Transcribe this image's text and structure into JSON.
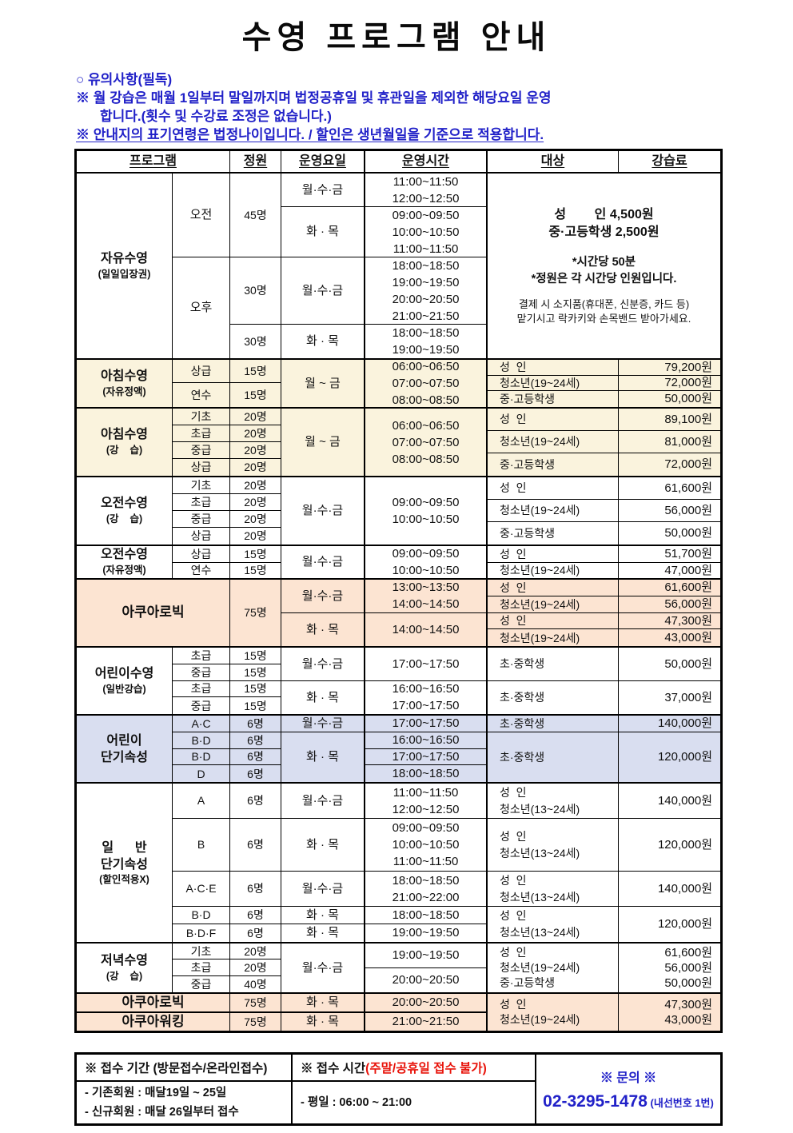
{
  "title": "수영 프로그램 안내",
  "notices": {
    "heading": "○ 유의사항(필독)",
    "line1": "※ 월 강습은 매월 1일부터 말일까지며 법정공휴일 및 휴관일을 제외한 해당요일 운영",
    "line2": "합니다.(횟수 및 수강료 조정은 없습니다.)",
    "line3": "※ 안내지의 표기연령은 법정나이입니다. / 할인은 생년월일을 기준으로 적용합니다."
  },
  "header": {
    "program": "프로그램",
    "capacity": "정원",
    "days": "운영요일",
    "time": "운영시간",
    "target": "대상",
    "fee": "강습료"
  },
  "s1": {
    "name": "자유수영",
    "sub": "(일일입장권)",
    "am": "오전",
    "am_cap": "45명",
    "am_g1_days": "월·수·금",
    "am_g1_time": "11:00~11:50\n12:00~12:50",
    "am_g2_days": "화 · 목",
    "am_g2_time": "09:00~09:50\n10:00~10:50\n11:00~11:50",
    "pm": "오후",
    "pm_cap1": "30명",
    "pm_g1_days": "월·수·금",
    "pm_g1_time": "18:00~18:50\n19:00~19:50\n20:00~20:50\n21:00~21:50",
    "pm_cap2": "30명",
    "pm_g2_days": "화 · 목",
    "pm_g2_time": "18:00~18:50\n19:00~19:50",
    "price1": "성        인 4,500원",
    "price2": "중·고등학생 2,500원",
    "note1": "*시간당 50분",
    "note2": "*정원은 각 시간당 인원입니다.",
    "small1": "결제 시 소지품(휴대폰, 신분증, 카드 등)",
    "small2": "맡기시고 락카키와 손목밴드 받아가세요."
  },
  "s2": {
    "name": "아침수영",
    "sub": "(자유정액)",
    "lv1": "상급",
    "lv1_cap": "15명",
    "lv2": "연수",
    "lv2_cap": "15명",
    "days": "월 ~ 금",
    "time": "06:00~06:50\n07:00~07:50\n08:00~08:50",
    "fees": [
      {
        "t": "성  인",
        "f": "79,200원"
      },
      {
        "t": "청소년(19~24세)",
        "f": "72,000원"
      },
      {
        "t": "중·고등학생",
        "f": "50,000원"
      }
    ]
  },
  "s3": {
    "name": "아침수영",
    "sub": "(강    습)",
    "lv1": "기초",
    "lv1_cap": "20명",
    "lv2": "초급",
    "lv2_cap": "20명",
    "lv3": "중급",
    "lv3_cap": "20명",
    "lv4": "상급",
    "lv4_cap": "20명",
    "days": "월 ~ 금",
    "time": "06:00~06:50\n07:00~07:50\n08:00~08:50",
    "fees": [
      {
        "t": "성  인",
        "f": "89,100원"
      },
      {
        "t": "청소년(19~24세)",
        "f": "81,000원"
      },
      {
        "t": "중·고등학생",
        "f": "72,000원"
      }
    ]
  },
  "s4": {
    "name": "오전수영",
    "sub": "(강    습)",
    "lv1": "기초",
    "lv1_cap": "20명",
    "lv2": "초급",
    "lv2_cap": "20명",
    "lv3": "중급",
    "lv3_cap": "20명",
    "lv4": "상급",
    "lv4_cap": "20명",
    "days": "월·수·금",
    "time": "09:00~09:50\n10:00~10:50",
    "fees": [
      {
        "t": "성  인",
        "f": "61,600원"
      },
      {
        "t": "청소년(19~24세)",
        "f": "56,000원"
      },
      {
        "t": "중·고등학생",
        "f": "50,000원"
      }
    ]
  },
  "s5": {
    "name": "오전수영",
    "sub": "(자유정액)",
    "lv1": "상급",
    "lv1_cap": "15명",
    "lv2": "연수",
    "lv2_cap": "15명",
    "days": "월·수·금",
    "time": "09:00~09:50\n10:00~10:50",
    "fees": [
      {
        "t": "성  인",
        "f": "51,700원"
      },
      {
        "t": "청소년(19~24세)",
        "f": "47,000원"
      }
    ]
  },
  "s6": {
    "name": "아쿠아로빅",
    "cap": "75명",
    "g1_days": "월·수·금",
    "g1_time": "13:00~13:50\n14:00~14:50",
    "g2_days": "화 · 목",
    "g2_time": "14:00~14:50",
    "fees": [
      {
        "t": "성  인",
        "f": "61,600원"
      },
      {
        "t": "청소년(19~24세)",
        "f": "56,000원"
      },
      {
        "t": "성  인",
        "f": "47,300원"
      },
      {
        "t": "청소년(19~24세)",
        "f": "43,000원"
      }
    ]
  },
  "s7": {
    "name": "어린이수영",
    "sub": "(일반강습)",
    "lv1": "초급",
    "lv1_cap": "15명",
    "lv2": "중급",
    "lv2_cap": "15명",
    "lv3": "초급",
    "lv3_cap": "15명",
    "lv4": "중급",
    "lv4_cap": "15명",
    "g1_days": "월·수·금",
    "g1_time": "17:00~17:50",
    "g1_target": "초·중학생",
    "g1_fee": "50,000원",
    "g2_days": "화 · 목",
    "g2_time": "16:00~16:50\n17:00~17:50",
    "g2_target": "초·중학생",
    "g2_fee": "37,000원"
  },
  "s8": {
    "name": "어린이\n단기속성",
    "lv1": "A·C",
    "lv1_cap": "6명",
    "lv2": "B·D",
    "lv2_cap": "6명",
    "lv3": "B·D",
    "lv3_cap": "6명",
    "lv4": "D",
    "lv4_cap": "6명",
    "g1_days": "월·수·금",
    "t1": "17:00~17:50",
    "g2_days": "화 · 목",
    "t2": "16:00~16:50",
    "t3": "17:00~17:50",
    "t4": "18:00~18:50",
    "g1_target": "초·중학생",
    "g1_fee": "140,000원",
    "g2_target": "초·중학생",
    "g2_fee": "120,000원"
  },
  "s9": {
    "name": "일      반\n단기속성",
    "sub": "(할인적용X)",
    "r1": {
      "lv": "A",
      "cap": "6명",
      "days": "월·수·금",
      "time": "11:00~11:50\n12:00~12:50",
      "target": "성  인\n청소년(13~24세)",
      "fee": "140,000원"
    },
    "r2": {
      "lv": "B",
      "cap": "6명",
      "days": "화 · 목",
      "time": "09:00~09:50\n10:00~10:50\n11:00~11:50",
      "target": "성  인\n청소년(13~24세)",
      "fee": "120,000원"
    },
    "r3": {
      "lv": "A·C·E",
      "cap": "6명",
      "days": "월·수·금",
      "time": "18:00~18:50\n21:00~22:00",
      "target": "성  인\n청소년(13~24세)",
      "fee": "140,000원"
    },
    "r4": {
      "lv": "B·D",
      "cap": "6명",
      "days": "화 · 목",
      "time": "18:00~18:50"
    },
    "r5": {
      "lv": "B·D·F",
      "cap": "6명",
      "days": "화 · 목",
      "time": "19:00~19:50"
    },
    "r45_target": "성  인\n청소년(13~24세)",
    "r45_fee": "120,000원"
  },
  "s10": {
    "name": "저녁수영",
    "sub": "(강    습)",
    "lv1": "기초",
    "lv1_cap": "20명",
    "lv2": "초급",
    "lv2_cap": "20명",
    "lv3": "중급",
    "lv3_cap": "40명",
    "days": "월·수·금",
    "time1": "19:00~19:50",
    "time2": "20:00~20:50",
    "target": "성  인\n청소년(19~24세)\n중·고등학생",
    "fee": "61,600원\n56,000원\n50,000원"
  },
  "s11": {
    "name": "아쿠아로빅",
    "cap": "75명",
    "days": "화 · 목",
    "time": "20:00~20:50"
  },
  "s12": {
    "name": "아쿠아워킹",
    "cap": "75명",
    "days": "화 · 목",
    "time": "21:00~21:50"
  },
  "s1112": {
    "target": "성  인\n청소년(19~24세)",
    "fee": "47,300원\n43,000원"
  },
  "footer": {
    "c1_header": "※ 접수 기간 (방문접수/온라인접수)",
    "c1_line1": "- 기존회원 : 매달19일 ~ 25일",
    "c1_line2": "- 신규회원 : 매달 26일부터 접수",
    "c2_header": "※ 접수 시간 ",
    "c2_header_red": "(주말/공휴일 접수 불가)",
    "c2_line": "- 평일 : 06:00 ~ 21:00",
    "c3_title": "※ 문의 ※",
    "c3_phone": "02-3295-1478",
    "c3_ext": " (내선번호 1번)"
  },
  "colors": {
    "notice_blue": "#2121C8",
    "alert_red": "#E8130A",
    "section_cream": "#FAF3DD",
    "section_peach": "#FCE4D2",
    "section_lavender": "#D9DEF0",
    "border": "#000000"
  }
}
